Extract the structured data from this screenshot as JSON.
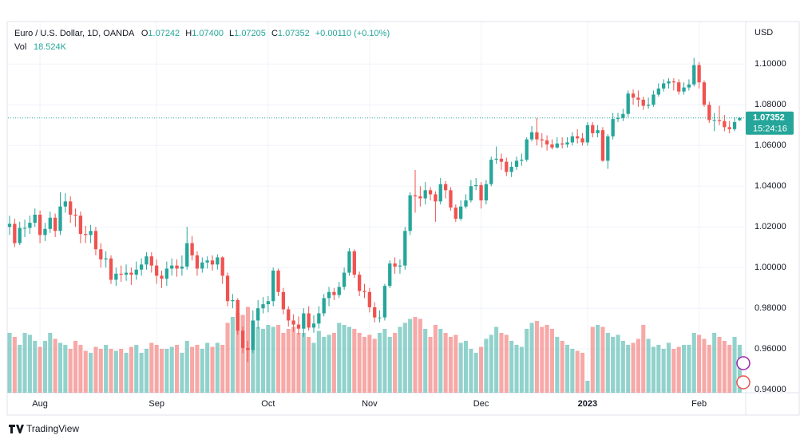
{
  "chart_data": {
    "type": "candlestick",
    "title": "Euro / U.S. Dollar, 1D, OANDA",
    "legend": {
      "open_label": "O",
      "open": {
        "value": 1.07242,
        "label": "1.07242"
      },
      "high_label": "H",
      "high": {
        "value": 1.074,
        "label": "1.07400"
      },
      "low_label": "L",
      "low": {
        "value": 1.07205,
        "label": "1.07205"
      },
      "close_label": "C",
      "close": {
        "value": 1.07352,
        "label": "1.07352"
      },
      "change": "+0.00110 (+0.10%)"
    },
    "volume_label": "Vol",
    "volume_value": "18.524K",
    "currency": "USD",
    "last_price": {
      "value": 1.07352,
      "label": "1.07352"
    },
    "countdown": "15:24:16",
    "footer": "TradingView",
    "up_color": "#26a69a",
    "down_color": "#ef5350",
    "grid": true,
    "ylim": [
      0.9385,
      1.1205
    ],
    "yticks": [
      {
        "value": 0.94,
        "label": "0.94000"
      },
      {
        "value": 0.96,
        "label": "0.96000"
      },
      {
        "value": 0.98,
        "label": "0.98000"
      },
      {
        "value": 1.0,
        "label": "1.00000"
      },
      {
        "value": 1.02,
        "label": "1.02000"
      },
      {
        "value": 1.04,
        "label": "1.04000"
      },
      {
        "value": 1.06,
        "label": "1.06000"
      },
      {
        "value": 1.08,
        "label": "1.08000"
      },
      {
        "value": 1.1,
        "label": "1.10000"
      }
    ],
    "xticks": [
      {
        "value": 6,
        "label": "Aug"
      },
      {
        "value": 29,
        "label": "Sep"
      },
      {
        "value": 51,
        "label": "Oct"
      },
      {
        "value": 71,
        "label": "Nov"
      },
      {
        "value": 93,
        "label": "Dec"
      },
      {
        "value": 114,
        "label": "2023"
      },
      {
        "value": 136,
        "label": "Feb"
      }
    ],
    "vlim": [
      0,
      300
    ],
    "open": [
      1.02,
      1.0215,
      1.012,
      1.0195,
      1.0195,
      1.022,
      1.026,
      1.016,
      1.019,
      1.0245,
      1.018,
      1.03,
      1.0325,
      1.026,
      1.0255,
      1.0165,
      1.016,
      1.018,
      1.009,
      1.004,
      1.0045,
      0.994,
      0.997,
      0.9965,
      0.9975,
      0.9965,
      0.999,
      1.0015,
      1.0055,
      1.001,
      0.996,
      0.9945,
      0.9995,
      1.001,
      0.9995,
      1.0005,
      1.012,
      1.006,
      0.9995,
      1.0025,
      1.0035,
      1.0015,
      1.005,
      0.996,
      0.9835,
      0.984,
      0.969,
      0.9605,
      0.9595,
      0.974,
      0.98,
      0.982,
      0.9835,
      0.9985,
      0.988,
      0.9795,
      0.974,
      0.972,
      0.97,
      0.9775,
      0.9705,
      0.9725,
      0.9775,
      0.985,
      0.988,
      0.9865,
      0.9905,
      0.9975,
      1.008,
      0.9965,
      0.9885,
      0.988,
      0.9805,
      0.9755,
      0.9755,
      0.991,
      1.002,
      1.0005,
      1.001,
      1.018,
      1.0355,
      1.035,
      1.034,
      1.038,
      1.036,
      1.0325,
      1.041,
      1.038,
      1.0295,
      1.024,
      1.03,
      1.033,
      1.04,
      1.0405,
      1.033,
      1.041,
      1.053,
      1.0535,
      1.052,
      1.047,
      1.0495,
      1.0525,
      1.053,
      1.063,
      1.0665,
      1.063,
      1.0625,
      1.0605,
      1.059,
      1.061,
      1.0605,
      1.0615,
      1.0645,
      1.0635,
      1.0615,
      1.07,
      1.066,
      1.0675,
      1.0525,
      1.0645,
      1.073,
      1.0735,
      1.0755,
      1.0855,
      1.0835,
      1.0825,
      1.0795,
      1.08,
      1.085,
      1.088,
      1.0905,
      1.0915,
      1.091,
      1.0865,
      1.0885,
      1.09,
      1.0995,
      1.091,
      1.08,
      1.0725,
      1.0725,
      1.072,
      1.069,
      1.068,
      1.07242
    ],
    "high": [
      1.0255,
      1.024,
      1.0225,
      1.0235,
      1.0255,
      1.029,
      1.028,
      1.022,
      1.0275,
      1.0265,
      1.037,
      1.0365,
      1.035,
      1.029,
      1.0275,
      1.0205,
      1.021,
      1.02,
      1.012,
      1.008,
      1.006,
      1.0,
      1.001,
      1.0015,
      1.0,
      1.003,
      1.0045,
      1.0075,
      1.0075,
      1.004,
      0.9985,
      1.003,
      1.0045,
      1.004,
      1.006,
      1.02,
      1.0155,
      1.008,
      1.005,
      1.0055,
      1.006,
      1.0065,
      1.0055,
      0.9975,
      0.987,
      0.985,
      0.971,
      0.964,
      0.979,
      0.984,
      0.9855,
      0.986,
      1.0,
      0.9995,
      0.99,
      0.981,
      0.977,
      0.976,
      0.98,
      0.981,
      0.9765,
      0.981,
      0.987,
      0.9905,
      0.99,
      0.993,
      1.0,
      1.0095,
      1.009,
      0.998,
      0.992,
      0.99,
      0.983,
      0.979,
      0.992,
      1.0035,
      1.005,
      1.004,
      1.02,
      1.037,
      1.048,
      1.04,
      1.042,
      1.0395,
      1.0375,
      1.044,
      1.0425,
      1.0395,
      1.031,
      1.033,
      1.036,
      1.043,
      1.044,
      1.042,
      1.043,
      1.0545,
      1.0595,
      1.056,
      1.054,
      1.052,
      1.0545,
      1.056,
      1.064,
      1.0695,
      1.0735,
      1.066,
      1.065,
      1.063,
      1.064,
      1.064,
      1.064,
      1.0665,
      1.068,
      1.066,
      1.0715,
      1.0715,
      1.07,
      1.069,
      1.0655,
      1.076,
      1.076,
      1.078,
      1.087,
      1.0875,
      1.087,
      1.084,
      1.0835,
      1.087,
      1.0905,
      1.0925,
      1.093,
      1.093,
      1.0925,
      1.091,
      1.0925,
      1.103,
      1.101,
      1.092,
      1.0815,
      1.076,
      1.0795,
      1.075,
      1.072,
      1.074,
      1.074
    ],
    "low": [
      1.016,
      1.01,
      1.011,
      1.015,
      1.0165,
      1.02,
      1.012,
      1.013,
      1.017,
      1.015,
      1.016,
      1.027,
      1.022,
      1.02,
      1.012,
      1.012,
      1.012,
      1.006,
      1.0,
      1.0,
      0.992,
      0.991,
      0.993,
      0.9935,
      0.9915,
      0.994,
      0.996,
      0.999,
      0.9975,
      0.992,
      0.99,
      0.991,
      0.996,
      0.9955,
      0.996,
      0.999,
      1.0035,
      0.996,
      0.9975,
      0.9995,
      0.9985,
      0.999,
      0.992,
      0.981,
      0.98,
      0.967,
      0.958,
      0.9535,
      0.958,
      0.97,
      0.9775,
      0.978,
      0.981,
      0.986,
      0.977,
      0.971,
      0.9685,
      0.967,
      0.966,
      0.969,
      0.968,
      0.97,
      0.976,
      0.981,
      0.984,
      0.985,
      0.989,
      0.996,
      0.995,
      0.986,
      0.985,
      0.978,
      0.973,
      0.973,
      0.974,
      0.99,
      0.997,
      0.997,
      0.999,
      1.016,
      1.027,
      1.03,
      1.031,
      1.033,
      1.0225,
      1.031,
      1.034,
      1.028,
      1.0225,
      1.023,
      1.029,
      1.032,
      1.038,
      1.029,
      1.031,
      1.04,
      1.051,
      1.048,
      1.045,
      1.0445,
      1.048,
      1.05,
      1.052,
      1.062,
      1.06,
      1.059,
      1.0575,
      1.058,
      1.0585,
      1.0585,
      1.059,
      1.06,
      1.061,
      1.06,
      1.06,
      1.064,
      1.064,
      1.052,
      1.0485,
      1.063,
      1.0715,
      1.072,
      1.074,
      1.08,
      1.079,
      1.0775,
      1.078,
      1.079,
      1.084,
      1.0865,
      1.088,
      1.087,
      1.085,
      1.085,
      1.087,
      1.089,
      1.088,
      1.079,
      1.071,
      1.067,
      1.07,
      1.067,
      1.066,
      1.067,
      1.07205
    ],
    "close": [
      1.0215,
      1.012,
      1.0195,
      1.0195,
      1.022,
      1.026,
      1.016,
      1.019,
      1.0245,
      1.018,
      1.03,
      1.0325,
      1.026,
      1.0255,
      1.0165,
      1.016,
      1.018,
      1.009,
      1.004,
      1.0045,
      0.994,
      0.997,
      0.9965,
      0.9975,
      0.9965,
      0.999,
      1.0015,
      1.0055,
      1.001,
      0.996,
      0.9945,
      0.9995,
      1.001,
      0.9995,
      1.0005,
      1.012,
      1.006,
      0.9995,
      1.0025,
      1.0035,
      1.0015,
      1.005,
      0.996,
      0.9835,
      0.984,
      0.969,
      0.9605,
      0.9595,
      0.974,
      0.98,
      0.982,
      0.9835,
      0.9985,
      0.988,
      0.9795,
      0.974,
      0.972,
      0.97,
      0.9775,
      0.9705,
      0.9725,
      0.9775,
      0.985,
      0.988,
      0.9865,
      0.9905,
      0.9975,
      1.008,
      0.9965,
      0.9885,
      0.988,
      0.9805,
      0.9755,
      0.9755,
      0.991,
      1.002,
      1.0005,
      1.001,
      1.018,
      1.0355,
      1.035,
      1.034,
      1.038,
      1.036,
      1.0325,
      1.041,
      1.038,
      1.0295,
      1.024,
      1.03,
      1.033,
      1.04,
      1.0405,
      1.033,
      1.041,
      1.053,
      1.0535,
      1.052,
      1.047,
      1.0495,
      1.0525,
      1.053,
      1.063,
      1.0665,
      1.063,
      1.0625,
      1.0605,
      1.059,
      1.061,
      1.0605,
      1.0615,
      1.0645,
      1.0635,
      1.0615,
      1.07,
      1.066,
      1.0675,
      1.0525,
      1.0645,
      1.073,
      1.0735,
      1.0755,
      1.0855,
      1.0835,
      1.0825,
      1.0795,
      1.08,
      1.085,
      1.088,
      1.0905,
      1.0915,
      1.091,
      1.0865,
      1.0885,
      1.09,
      1.0995,
      1.091,
      1.08,
      1.0725,
      1.0725,
      1.072,
      1.069,
      1.068,
      1.0715,
      1.07352
    ],
    "volume": [
      150,
      140,
      120,
      150,
      145,
      130,
      115,
      130,
      150,
      135,
      125,
      120,
      110,
      130,
      120,
      105,
      100,
      115,
      110,
      120,
      110,
      105,
      110,
      100,
      115,
      120,
      100,
      110,
      125,
      120,
      110,
      110,
      115,
      120,
      100,
      130,
      115,
      120,
      110,
      125,
      115,
      125,
      120,
      175,
      190,
      200,
      195,
      215,
      180,
      165,
      160,
      170,
      165,
      170,
      150,
      160,
      165,
      150,
      150,
      140,
      125,
      155,
      140,
      145,
      150,
      175,
      170,
      165,
      160,
      150,
      140,
      145,
      135,
      150,
      160,
      140,
      150,
      165,
      175,
      185,
      190,
      185,
      160,
      140,
      170,
      160,
      150,
      140,
      145,
      125,
      130,
      110,
      100,
      115,
      135,
      145,
      165,
      150,
      145,
      130,
      120,
      115,
      160,
      175,
      180,
      165,
      170,
      160,
      140,
      130,
      120,
      110,
      105,
      100,
      30,
      165,
      170,
      165,
      150,
      140,
      145,
      130,
      120,
      125,
      135,
      170,
      135,
      115,
      120,
      110,
      125,
      110,
      115,
      120,
      120,
      150,
      145,
      135,
      120,
      150,
      140,
      130,
      120,
      140,
      120
    ]
  }
}
